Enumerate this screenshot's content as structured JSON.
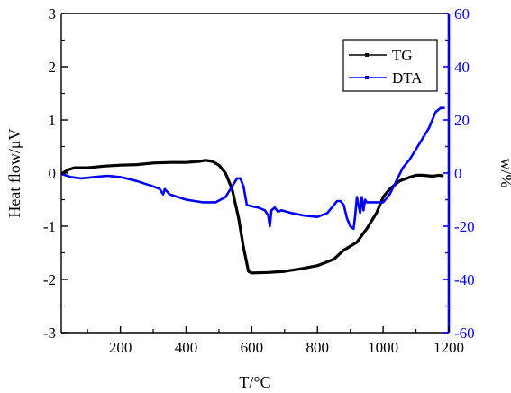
{
  "chart_data": {
    "type": "line",
    "xlabel": "T/°C",
    "ylabel_left": "Heat flow/μV",
    "ylabel_right": "w/%",
    "xlim": [
      20,
      1200
    ],
    "ylim_left": [
      -3,
      3
    ],
    "ylim_right": [
      -60,
      60
    ],
    "x_ticks": [
      200,
      400,
      600,
      800,
      1000,
      1200
    ],
    "y_left_ticks": [
      -3,
      -2,
      -1,
      0,
      1,
      2,
      3
    ],
    "y_right_ticks": [
      -60,
      -40,
      -20,
      0,
      20,
      40,
      60
    ],
    "legend_position": "top-right",
    "colors": {
      "axis_left": "#000000",
      "axis_right": "#0000ff",
      "tg": "#000000",
      "dta": "#0000ff"
    },
    "series": [
      {
        "name": "TG",
        "axis": "left",
        "points": [
          [
            25,
            0.0
          ],
          [
            40,
            0.06
          ],
          [
            60,
            0.1
          ],
          [
            100,
            0.1
          ],
          [
            150,
            0.13
          ],
          [
            200,
            0.15
          ],
          [
            250,
            0.16
          ],
          [
            300,
            0.19
          ],
          [
            350,
            0.2
          ],
          [
            400,
            0.2
          ],
          [
            440,
            0.22
          ],
          [
            460,
            0.24
          ],
          [
            480,
            0.22
          ],
          [
            500,
            0.15
          ],
          [
            520,
            0.0
          ],
          [
            540,
            -0.3
          ],
          [
            560,
            -0.85
          ],
          [
            575,
            -1.4
          ],
          [
            590,
            -1.85
          ],
          [
            600,
            -1.88
          ],
          [
            650,
            -1.87
          ],
          [
            700,
            -1.85
          ],
          [
            750,
            -1.8
          ],
          [
            800,
            -1.74
          ],
          [
            850,
            -1.62
          ],
          [
            880,
            -1.45
          ],
          [
            920,
            -1.3
          ],
          [
            950,
            -1.05
          ],
          [
            980,
            -0.75
          ],
          [
            1000,
            -0.45
          ],
          [
            1020,
            -0.3
          ],
          [
            1050,
            -0.15
          ],
          [
            1080,
            -0.08
          ],
          [
            1100,
            -0.04
          ],
          [
            1120,
            -0.04
          ],
          [
            1150,
            -0.06
          ],
          [
            1170,
            -0.04
          ],
          [
            1180,
            -0.05
          ]
        ]
      },
      {
        "name": "DTA",
        "axis": "right",
        "points": [
          [
            25,
            -0.5
          ],
          [
            50,
            -1.5
          ],
          [
            80,
            -2
          ],
          [
            120,
            -1.5
          ],
          [
            160,
            -1
          ],
          [
            200,
            -1.5
          ],
          [
            250,
            -3
          ],
          [
            300,
            -5
          ],
          [
            320,
            -6
          ],
          [
            330,
            -8
          ],
          [
            335,
            -6
          ],
          [
            350,
            -8
          ],
          [
            400,
            -10
          ],
          [
            450,
            -11
          ],
          [
            490,
            -11
          ],
          [
            520,
            -9
          ],
          [
            540,
            -5
          ],
          [
            555,
            -2
          ],
          [
            565,
            -2
          ],
          [
            575,
            -5
          ],
          [
            585,
            -12
          ],
          [
            600,
            -12.5
          ],
          [
            620,
            -13
          ],
          [
            640,
            -14
          ],
          [
            650,
            -16
          ],
          [
            655,
            -20
          ],
          [
            660,
            -14
          ],
          [
            670,
            -13
          ],
          [
            680,
            -14.5
          ],
          [
            690,
            -14
          ],
          [
            720,
            -15
          ],
          [
            760,
            -16
          ],
          [
            800,
            -16.5
          ],
          [
            830,
            -15
          ],
          [
            850,
            -12
          ],
          [
            860,
            -10.5
          ],
          [
            870,
            -10.5
          ],
          [
            880,
            -12
          ],
          [
            890,
            -17
          ],
          [
            900,
            -20
          ],
          [
            910,
            -21
          ],
          [
            915,
            -16
          ],
          [
            920,
            -9
          ],
          [
            925,
            -12
          ],
          [
            930,
            -15
          ],
          [
            935,
            -9
          ],
          [
            940,
            -14
          ],
          [
            945,
            -10
          ],
          [
            950,
            -11
          ],
          [
            970,
            -11
          ],
          [
            990,
            -11
          ],
          [
            1000,
            -11
          ],
          [
            1020,
            -8
          ],
          [
            1040,
            -3
          ],
          [
            1060,
            2
          ],
          [
            1080,
            5
          ],
          [
            1100,
            9
          ],
          [
            1120,
            13
          ],
          [
            1140,
            17
          ],
          [
            1160,
            23
          ],
          [
            1175,
            24.5
          ],
          [
            1185,
            24.5
          ]
        ]
      }
    ]
  }
}
